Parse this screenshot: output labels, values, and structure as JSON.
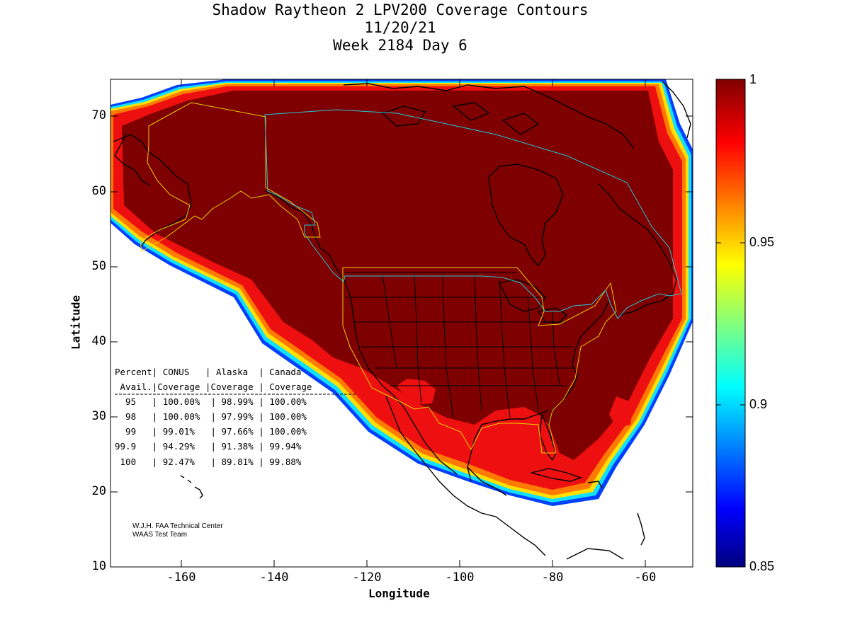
{
  "title": {
    "line1": "Shadow Raytheon 2 LPV200 Coverage Contours",
    "line2": "11/20/21",
    "line3": "Week 2184 Day 6"
  },
  "axes": {
    "xlabel": "Longitude",
    "ylabel": "Latitude",
    "xticks": [
      "-160",
      "-140",
      "-120",
      "-100",
      "-80",
      "-60"
    ],
    "yticks": [
      "70",
      "60",
      "50",
      "40",
      "30",
      "20",
      "10"
    ]
  },
  "colorbar": {
    "labels": [
      "1",
      "0.95",
      "0.9",
      "0.85"
    ]
  },
  "table": {
    "header1": "Percent| CONUS   | Alaska  | Canada",
    "header2": " Avail.|Coverage |Coverage | Coverage",
    "rows": [
      "  95   | 100.00%  | 98.99% | 100.00%",
      "  98   | 100.00%  | 97.99% | 100.00%",
      "  99   | 99.01%   | 97.66% | 100.00%",
      "99.9   | 94.29%   | 91.38% | 99.94%",
      " 100   | 92.47%   | 89.81% | 99.88%"
    ]
  },
  "credit": {
    "line1": "W.J.H. FAA Technical Center",
    "line2": "WAAS Test Team"
  },
  "colors": {
    "full_coverage": "#7f0000",
    "red": "#ee1010",
    "orange": "#ff7a00",
    "yellow": "#ffe000",
    "cyan": "#10e0ff",
    "blue": "#0030ff",
    "alaska_boundary": "#e8d000",
    "canada_boundary": "#20c8d8"
  }
}
